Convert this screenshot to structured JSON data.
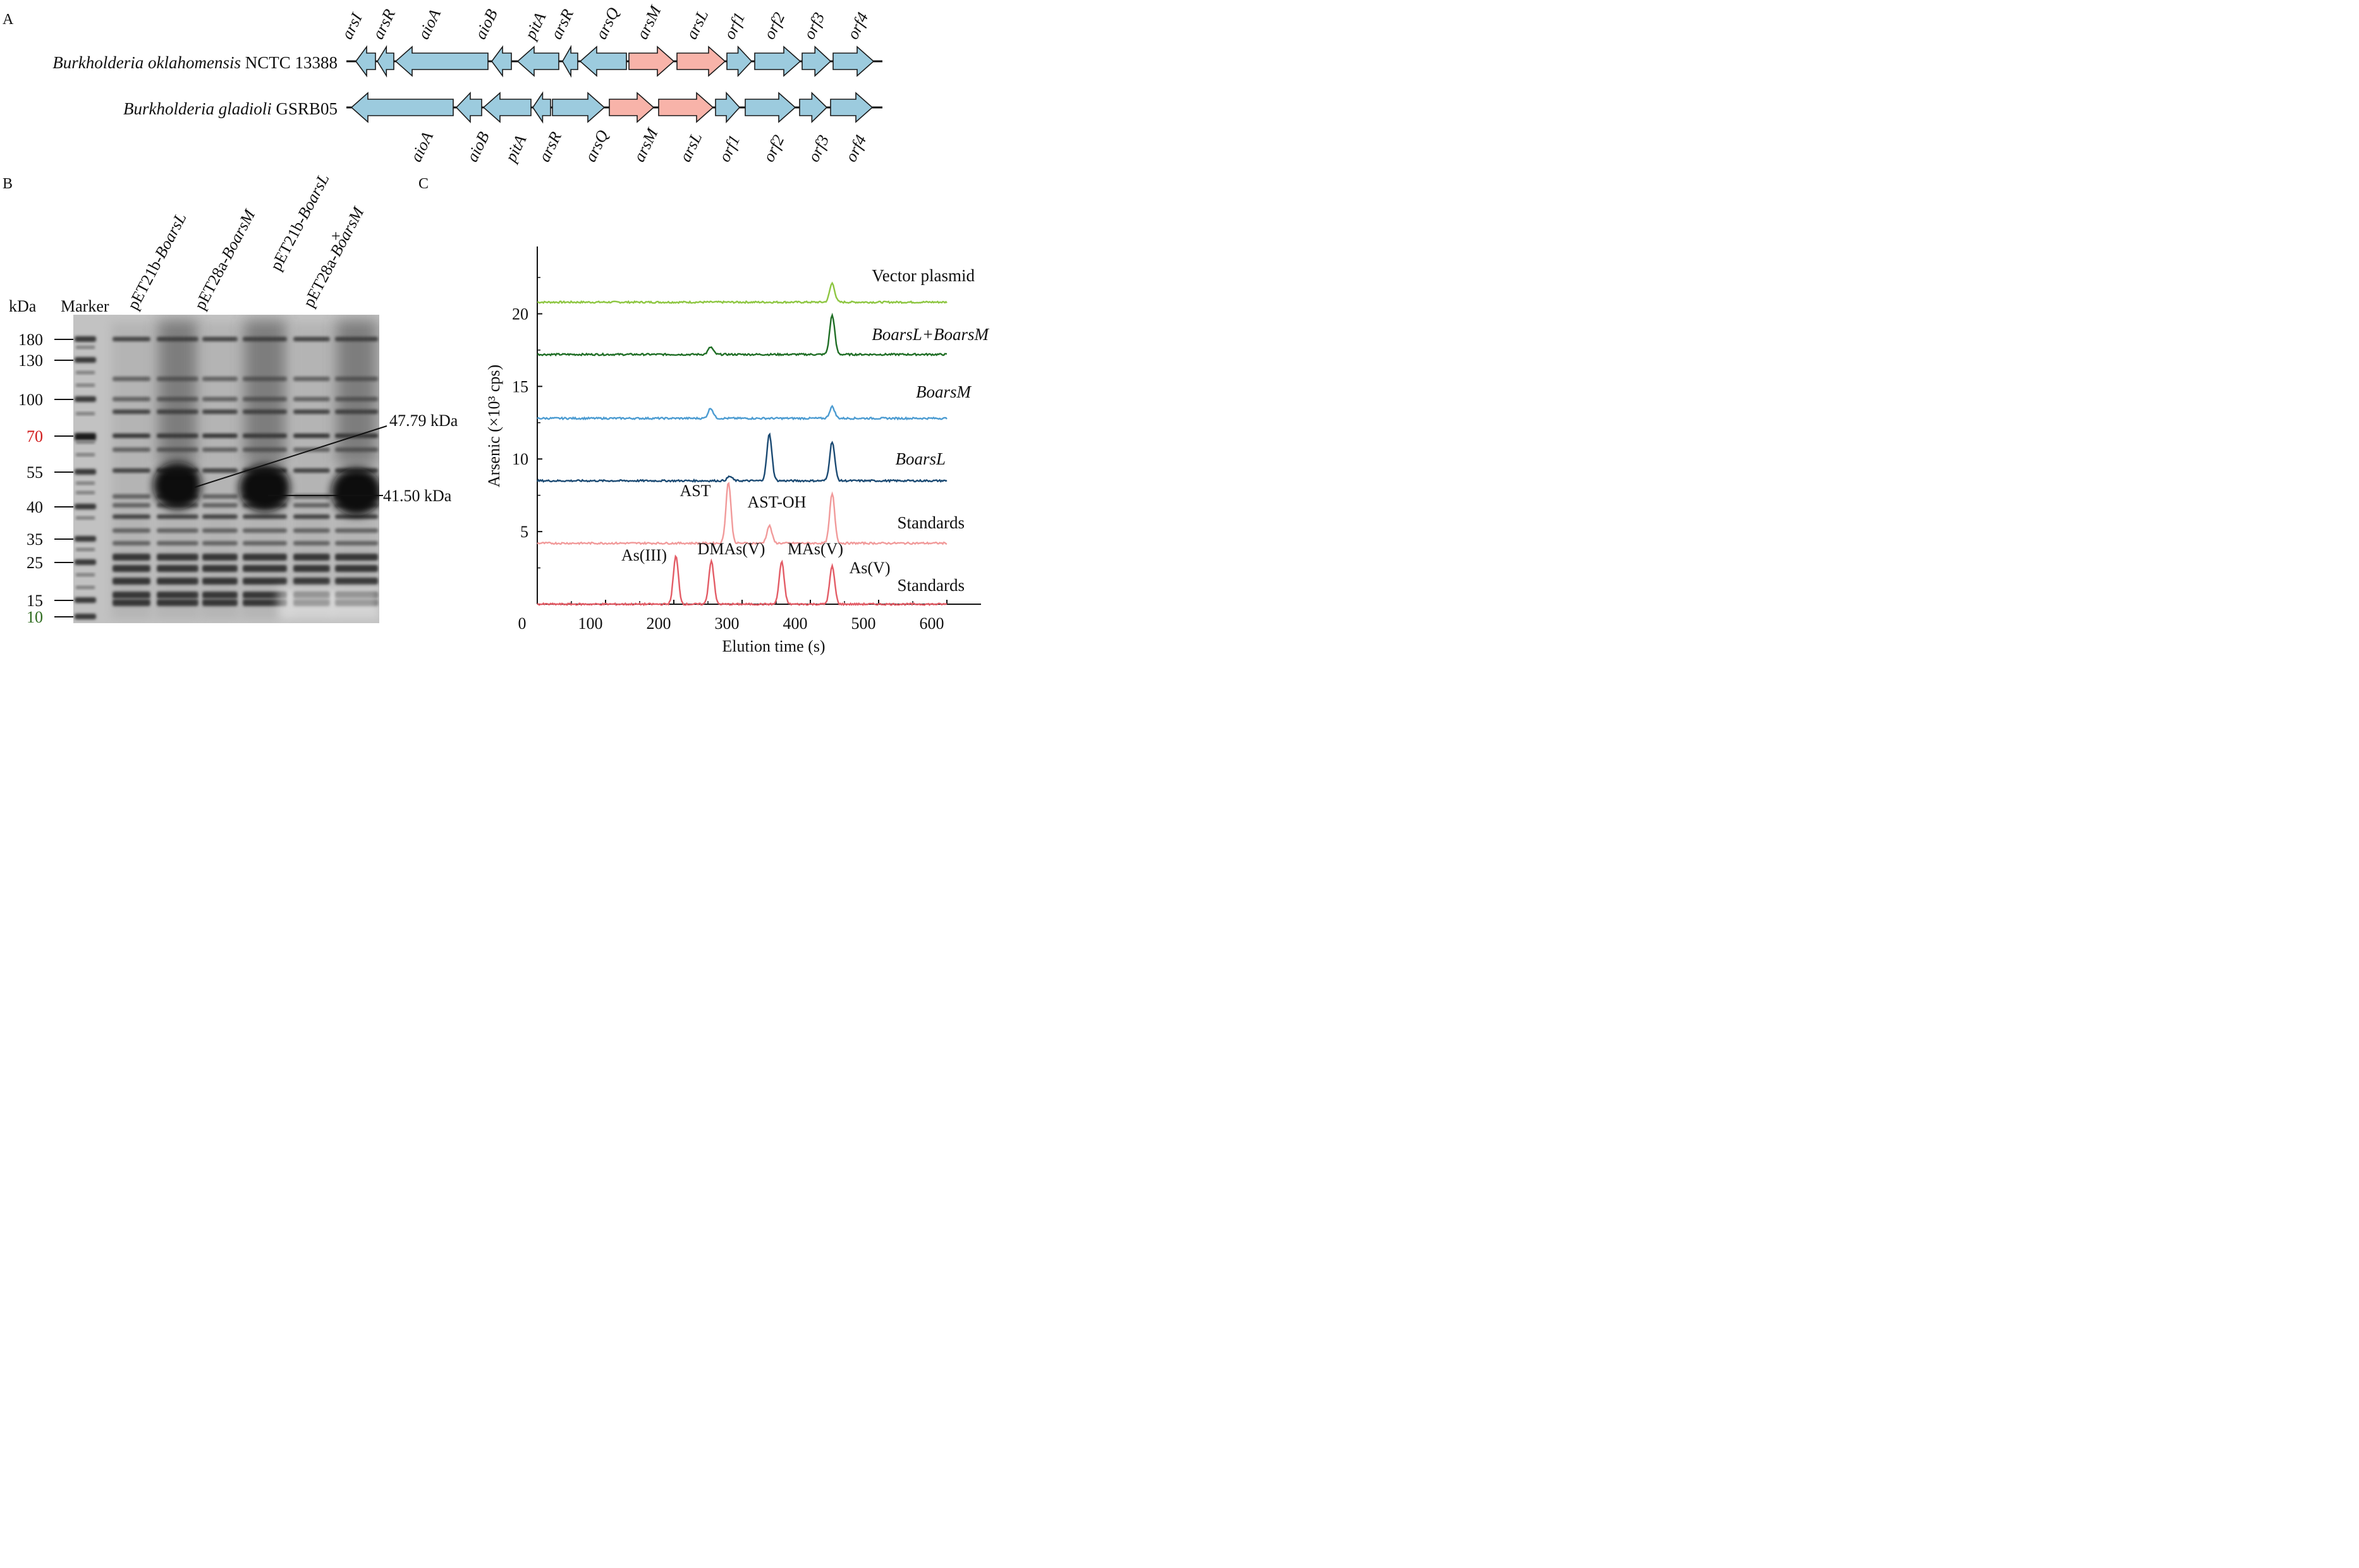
{
  "panel_labels": {
    "a": "A",
    "b": "B",
    "c": "C"
  },
  "panel_a": {
    "organism1": {
      "genus": "Burkholderia oklahomensis",
      "strain": "NCTC 13388"
    },
    "organism2": {
      "genus": "Burkholderia gladioli",
      "strain": "GSRB05"
    },
    "genes1": [
      "arsI",
      "arsR",
      "aioA",
      "aioB",
      "pitA",
      "arsR",
      "arsQ",
      "arsM",
      "arsL",
      "orf1",
      "orf2",
      "orf3",
      "orf4"
    ],
    "genes2": [
      "aioA",
      "aioB",
      "pitA",
      "arsR",
      "arsQ",
      "arsM",
      "arsL",
      "orf1",
      "orf2",
      "orf3",
      "orf4"
    ],
    "colors": {
      "gene": "#9ccbde",
      "highlight": "#f8b3a9",
      "outline": "#1a1a1a"
    }
  },
  "panel_b": {
    "unit_label": "kDa",
    "marker_label": "Marker",
    "lanes": [
      {
        "plain": "pET21b-",
        "ital": "BoarsL"
      },
      {
        "plain": "pET28a-",
        "ital": "BoarsM"
      },
      {
        "plain": "pET21b-",
        "ital": "BoarsL"
      },
      {
        "plain": "+",
        "ital": ""
      },
      {
        "plain": "pET28a-",
        "ital": "BoarsM"
      }
    ],
    "marker_sizes": [
      "180",
      "130",
      "100",
      "70",
      "55",
      "40",
      "35",
      "25",
      "15",
      "10"
    ],
    "marker_colors": {
      "70": "#d11a1a",
      "10": "#2e6b1e"
    },
    "annotations": [
      "47.79 kDa",
      "41.50 kDa"
    ]
  },
  "chart_data": {
    "type": "line",
    "xlabel": "Elution time (s)",
    "ylabel": "Arsenic (×10³ cps)",
    "xlim": [
      0,
      650
    ],
    "ylim": [
      0,
      25
    ],
    "xticks": [
      0,
      100,
      200,
      300,
      400,
      500,
      600
    ],
    "yticks": [
      5,
      10,
      15,
      20
    ],
    "grid": false,
    "series": [
      {
        "name": "Vector plasmid",
        "color": "#8dc641",
        "baseline": 20.8,
        "peaks": [
          {
            "x": 432,
            "height": 1.3
          }
        ]
      },
      {
        "name": "BoarsL+BoarsM",
        "color": "#1f6e25",
        "baseline": 17.2,
        "peaks": [
          {
            "x": 254,
            "height": 0.5
          },
          {
            "x": 432,
            "height": 2.7
          }
        ]
      },
      {
        "name": "BoarsM",
        "color": "#4b9bd1",
        "baseline": 12.8,
        "peaks": [
          {
            "x": 254,
            "height": 0.7
          },
          {
            "x": 432,
            "height": 0.8
          }
        ]
      },
      {
        "name": "BoarsL",
        "color": "#1b4a73",
        "baseline": 8.5,
        "peaks": [
          {
            "x": 282,
            "height": 0.3
          },
          {
            "x": 340,
            "height": 3.2
          },
          {
            "x": 432,
            "height": 2.7
          }
        ]
      },
      {
        "name": "Standards",
        "color": "#f19a9a",
        "baseline": 4.2,
        "peaks": [
          {
            "x": 280,
            "height": 4.2
          },
          {
            "x": 340,
            "height": 1.2
          },
          {
            "x": 432,
            "height": 3.4
          }
        ]
      },
      {
        "name": "Standards",
        "color": "#e35c66",
        "baseline": 0,
        "peaks": [
          {
            "x": 203,
            "height": 3.3
          },
          {
            "x": 255,
            "height": 3.0
          },
          {
            "x": 358,
            "height": 2.9
          },
          {
            "x": 432,
            "height": 2.6
          }
        ]
      }
    ],
    "annotations": [
      "AST",
      "AST-OH",
      "As(III)",
      "DMAs(V)",
      "MAs(V)",
      "As(V)"
    ]
  }
}
